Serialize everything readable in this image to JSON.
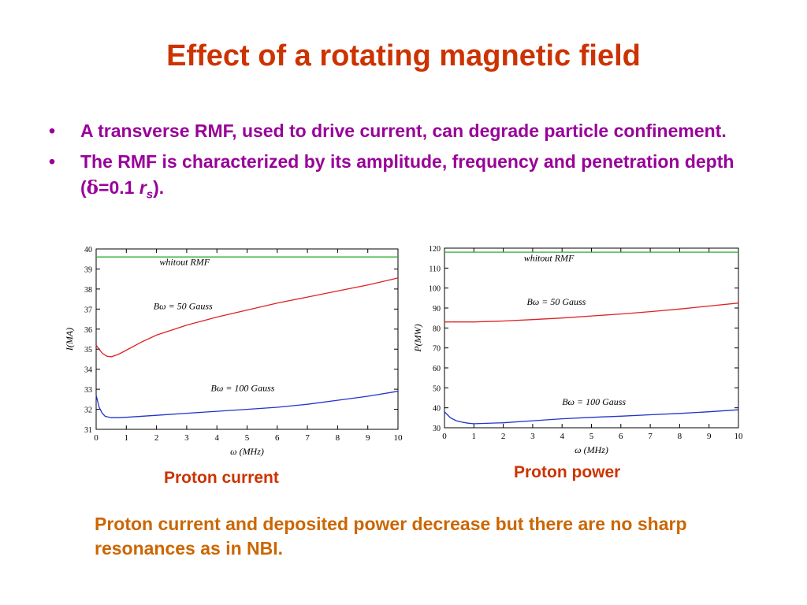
{
  "slide": {
    "title": "Effect of a rotating magnetic field",
    "bullets": [
      {
        "text": "A transverse RMF, used to drive current, can degrade particle confinement."
      },
      {
        "text_before": "The RMF is characterized by its amplitude, frequency and penetration depth (",
        "delta": "δ",
        "eq": "=0.1 ",
        "r": "r",
        "sub": "s",
        "text_after": ")."
      }
    ],
    "bullet_glyph": "•",
    "caption_left": "Proton current",
    "caption_right": "Proton power",
    "conclusion": "Proton current and deposited power decrease but there are no sharp resonances as in NBI.",
    "colors": {
      "title": "#cc3300",
      "bullets": "#990099",
      "captions": "#cc3300",
      "conclusion": "#cc6600",
      "ref_line": "#33aa33",
      "red_curve": "#dd2222",
      "blue_curve": "#2233cc"
    }
  },
  "chart_data": [
    {
      "type": "line",
      "xlabel": "ω (MHz)",
      "ylabel": "I(MA)",
      "xlim": [
        0,
        10
      ],
      "ylim": [
        31,
        40
      ],
      "xticks": [
        0,
        1,
        2,
        3,
        4,
        5,
        6,
        7,
        8,
        9,
        10
      ],
      "yticks": [
        31,
        32,
        33,
        34,
        35,
        36,
        37,
        38,
        39,
        40
      ],
      "grid": false,
      "series": [
        {
          "name": "whitout RMF",
          "color": "#33aa33",
          "x": [
            0,
            10
          ],
          "y": [
            39.6,
            39.6
          ]
        },
        {
          "name": "Bω = 50 Gauss",
          "color": "#dd2222",
          "x": [
            0,
            0.1,
            0.2,
            0.35,
            0.5,
            0.75,
            1,
            1.5,
            2,
            3,
            4,
            5,
            6,
            7,
            8,
            9,
            10
          ],
          "y": [
            35.2,
            35.0,
            34.8,
            34.65,
            34.62,
            34.75,
            34.95,
            35.35,
            35.7,
            36.2,
            36.6,
            36.95,
            37.3,
            37.6,
            37.9,
            38.2,
            38.55
          ]
        },
        {
          "name": "Bω = 100 Gauss",
          "color": "#2233cc",
          "x": [
            0,
            0.05,
            0.1,
            0.2,
            0.3,
            0.5,
            0.75,
            1,
            2,
            3,
            4,
            5,
            6,
            7,
            8,
            9,
            10
          ],
          "y": [
            32.7,
            32.4,
            32.1,
            31.8,
            31.65,
            31.58,
            31.58,
            31.6,
            31.7,
            31.8,
            31.9,
            32.0,
            32.1,
            32.25,
            32.45,
            32.65,
            32.9
          ]
        }
      ],
      "annotations": [
        {
          "text": "whitout RMF",
          "x": 2.1,
          "y": 39.2
        },
        {
          "text": "Bω = 50 Gauss",
          "x": 1.9,
          "y": 37.0
        },
        {
          "text": "Bω = 100 Gauss",
          "x": 3.8,
          "y": 32.9
        }
      ]
    },
    {
      "type": "line",
      "xlabel": "ω (MHz)",
      "ylabel": "P(MW)",
      "xlim": [
        0,
        10
      ],
      "ylim": [
        30,
        120
      ],
      "xticks": [
        0,
        1,
        2,
        3,
        4,
        5,
        6,
        7,
        8,
        9,
        10
      ],
      "yticks": [
        30,
        40,
        50,
        60,
        70,
        80,
        90,
        100,
        110,
        120
      ],
      "grid": false,
      "series": [
        {
          "name": "whitout RMF",
          "color": "#33aa33",
          "x": [
            0,
            10
          ],
          "y": [
            118,
            118
          ]
        },
        {
          "name": "Bω = 50 Gauss",
          "color": "#dd2222",
          "x": [
            0,
            1,
            2,
            3,
            4,
            5,
            6,
            7,
            8,
            9,
            10
          ],
          "y": [
            83,
            83,
            83.5,
            84.2,
            85,
            86,
            87,
            88.2,
            89.5,
            91,
            92.5
          ]
        },
        {
          "name": "Bω = 100 Gauss",
          "color": "#2233cc",
          "x": [
            0,
            0.1,
            0.2,
            0.4,
            0.6,
            0.8,
            1,
            2,
            3,
            4,
            5,
            6,
            7,
            8,
            9,
            10
          ],
          "y": [
            38,
            36.5,
            35,
            33.5,
            32.8,
            32.3,
            32,
            32.5,
            33.5,
            34.5,
            35.2,
            35.8,
            36.5,
            37.2,
            38,
            39
          ]
        }
      ],
      "annotations": [
        {
          "text": "whitout RMF",
          "x": 2.7,
          "y": 113.5
        },
        {
          "text": "Bω = 50 Gauss",
          "x": 2.8,
          "y": 91.5
        },
        {
          "text": "Bω = 100 Gauss",
          "x": 4.0,
          "y": 41.5
        }
      ]
    }
  ]
}
